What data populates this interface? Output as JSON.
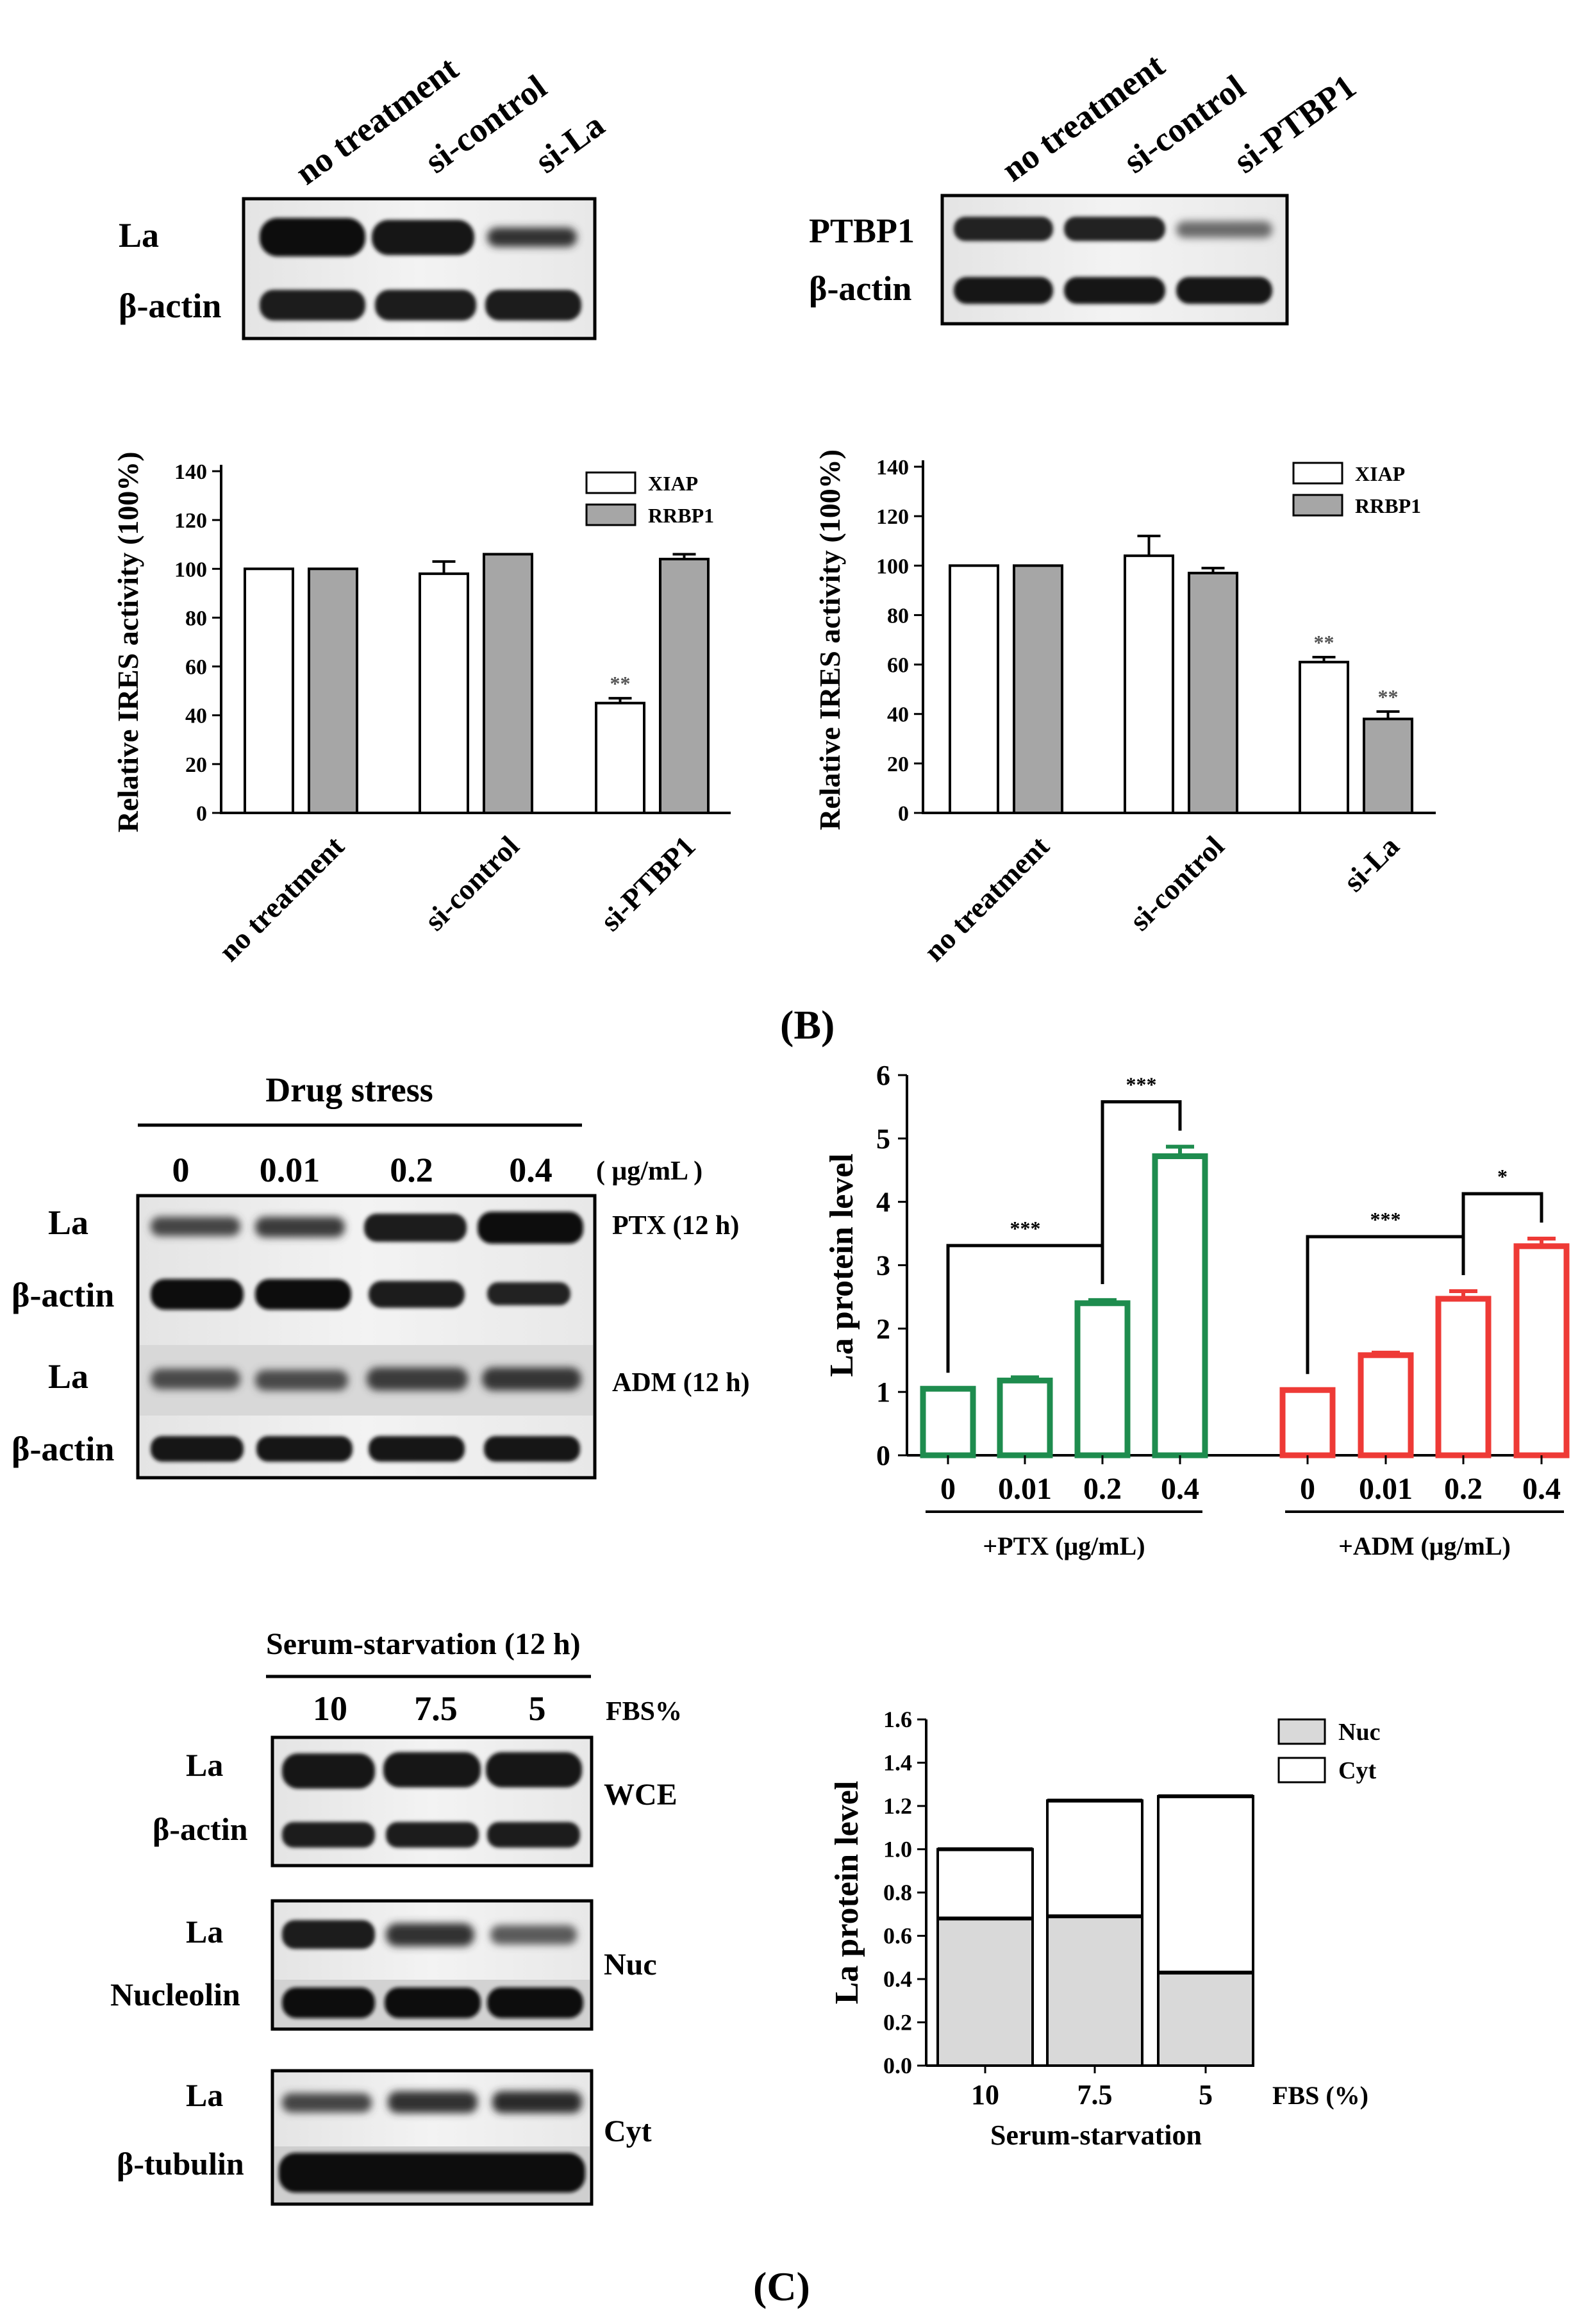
{
  "blotA": {
    "lanes": [
      "no  treatment",
      "si-control",
      "si-La"
    ],
    "rows": [
      "La",
      "β-actin"
    ]
  },
  "blotB": {
    "lanes": [
      "no  treatment",
      "si-control",
      "si-PTBP1"
    ],
    "rows": [
      "PTBP1",
      "β-actin"
    ]
  },
  "panel_B_label": "(B)",
  "panel_C_label": "(C)",
  "drugBlot": {
    "title": "Drug stress",
    "doses": [
      "0",
      "0.01",
      "0.2",
      "0.4"
    ],
    "unit": "( μg/mL )",
    "rows": [
      "La",
      "β-actin",
      "La",
      "β-actin"
    ],
    "side_labels": [
      "PTX (12 h)",
      "ADM (12 h)"
    ]
  },
  "serumBlot": {
    "title": "Serum-starvation (12 h)",
    "lanes": [
      "10",
      "7.5",
      "5"
    ],
    "unit": "FBS%",
    "rows": [
      "La",
      "β-actin",
      "La",
      "Nucleolin",
      "La",
      "β-tubulin"
    ],
    "side_labels": [
      "WCE",
      "Nuc",
      "Cyt"
    ]
  },
  "colors": {
    "white_bar": "#ffffff",
    "gray_bar": "#a6a6a6",
    "ptx_green": "#1e8c4e",
    "adm_red": "#ee3a36",
    "nuc_gray": "#d9d9d9",
    "band": "#151515"
  },
  "chart_data": [
    {
      "type": "bar",
      "ylabel": "Relative IRES activity (100%)",
      "categories": [
        "no treatment",
        "si-control",
        "si-PTBP1"
      ],
      "series": [
        {
          "name": "XIAP",
          "values": [
            100,
            98,
            45
          ],
          "errors": [
            0,
            5,
            2
          ],
          "sig": [
            "",
            "",
            "**"
          ]
        },
        {
          "name": "RRBP1",
          "values": [
            100,
            106,
            104
          ],
          "errors": [
            0,
            0,
            2
          ],
          "sig": [
            "",
            "",
            ""
          ]
        }
      ],
      "yticks": [
        "0",
        "20",
        "40",
        "60",
        "80",
        "100",
        "120",
        "140"
      ],
      "ylim": [
        0,
        140
      ]
    },
    {
      "type": "bar",
      "ylabel": "Relative IRES activity (100%)",
      "categories": [
        "no treatment",
        "si-control",
        "si-La"
      ],
      "series": [
        {
          "name": "XIAP",
          "values": [
            100,
            104,
            61
          ],
          "errors": [
            0,
            8,
            2
          ],
          "sig": [
            "",
            "",
            "**"
          ]
        },
        {
          "name": "RRBP1",
          "values": [
            100,
            97,
            38
          ],
          "errors": [
            0,
            2,
            3
          ],
          "sig": [
            "",
            "",
            "**"
          ]
        }
      ],
      "yticks": [
        "0",
        "20",
        "40",
        "60",
        "80",
        "100",
        "120",
        "140"
      ],
      "ylim": [
        0,
        140
      ]
    },
    {
      "type": "bar",
      "ylabel": "La protein level",
      "groups": [
        {
          "name": "+PTX (μg/mL)",
          "categories": [
            "0",
            "0.01",
            "0.2",
            "0.4"
          ],
          "values": [
            1.05,
            1.18,
            2.4,
            4.72
          ],
          "errors": [
            0,
            0.05,
            0.05,
            0.15
          ]
        },
        {
          "name": "+ADM (μg/mL)",
          "categories": [
            "0",
            "0.01",
            "0.2",
            "0.4"
          ],
          "values": [
            1.03,
            1.58,
            2.47,
            3.3
          ],
          "errors": [
            0,
            0.04,
            0.12,
            0.12
          ]
        }
      ],
      "brackets": [
        {
          "group": 0,
          "from": 0,
          "to": 2,
          "label": "***"
        },
        {
          "group": 0,
          "from": 2,
          "to": 3,
          "label": "***"
        },
        {
          "group": 1,
          "from": 0,
          "to": 2,
          "label": "***"
        },
        {
          "group": 1,
          "from": 2,
          "to": 3,
          "label": "*"
        }
      ],
      "yticks": [
        "0",
        "1",
        "2",
        "3",
        "4",
        "5",
        "6"
      ],
      "ylim": [
        0,
        6
      ]
    },
    {
      "type": "bar",
      "stacked": true,
      "ylabel": "La protein level",
      "xlabel": "Serum-starvation",
      "x_unit": "FBS (%)",
      "categories": [
        "10",
        "7.5",
        "5"
      ],
      "series": [
        {
          "name": "Nuc",
          "values": [
            0.68,
            0.69,
            0.43
          ]
        },
        {
          "name": "Cyt",
          "values": [
            0.32,
            0.535,
            0.815
          ]
        }
      ],
      "totals": [
        1.0,
        1.225,
        1.245
      ],
      "yticks": [
        "0.0",
        "0.2",
        "0.4",
        "0.6",
        "0.8",
        "1.0",
        "1.2",
        "1.4",
        "1.6"
      ],
      "ylim": [
        0,
        1.6
      ]
    }
  ]
}
